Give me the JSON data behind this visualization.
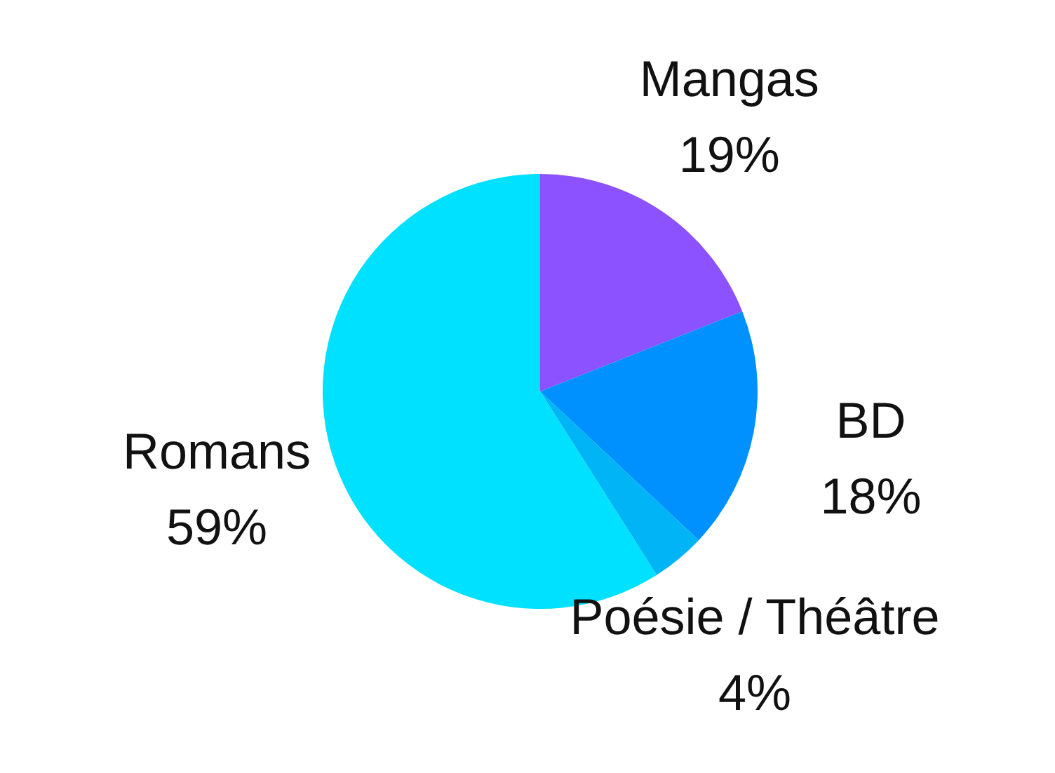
{
  "chart_data": {
    "type": "pie",
    "categories": [
      "Mangas",
      "BD",
      "Poésie / Théâtre",
      "Romans"
    ],
    "values": [
      19,
      18,
      4,
      59
    ],
    "value_labels": [
      "19%",
      "18%",
      "4%",
      "59%"
    ],
    "colors": [
      "#8c52ff",
      "#0091ff",
      "#00b4f5",
      "#00e0ff"
    ]
  }
}
